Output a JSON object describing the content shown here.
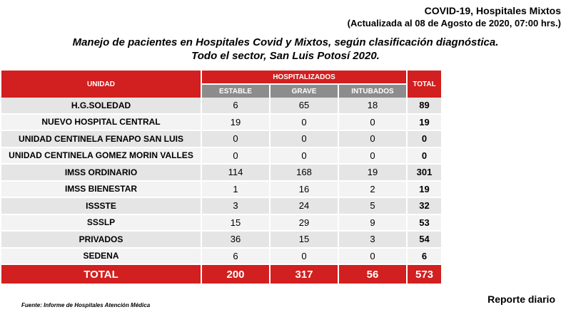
{
  "header": {
    "title": "COVID-19, Hospitales Mixtos",
    "updated": "(Actualizada al 08 de Agosto de 2020, 07:00 hrs.)"
  },
  "subtitle": {
    "line1": "Manejo de pacientes en Hospitales Covid y Mixtos, según clasificación diagnóstica.",
    "line2": "Todo el sector, San Luis Potosí 2020."
  },
  "table": {
    "col_unidad": "UNIDAD",
    "col_group": "HOSPITALIZADOS",
    "col_estable": "ESTABLE",
    "col_grave": "GRAVE",
    "col_intubados": "INTUBADOS",
    "col_total": "TOTAL",
    "rows": [
      {
        "unit": "H.G.SOLEDAD",
        "estable": "6",
        "grave": "65",
        "intubados": "18",
        "total": "89"
      },
      {
        "unit": "NUEVO HOSPITAL CENTRAL",
        "estable": "19",
        "grave": "0",
        "intubados": "0",
        "total": "19"
      },
      {
        "unit": "UNIDAD CENTINELA FENAPO SAN LUIS",
        "estable": "0",
        "grave": "0",
        "intubados": "0",
        "total": "0"
      },
      {
        "unit": "UNIDAD CENTINELA GOMEZ MORIN VALLES",
        "estable": "0",
        "grave": "0",
        "intubados": "0",
        "total": "0"
      },
      {
        "unit": "IMSS ORDINARIO",
        "estable": "114",
        "grave": "168",
        "intubados": "19",
        "total": "301"
      },
      {
        "unit": "IMSS BIENESTAR",
        "estable": "1",
        "grave": "16",
        "intubados": "2",
        "total": "19"
      },
      {
        "unit": "ISSSTE",
        "estable": "3",
        "grave": "24",
        "intubados": "5",
        "total": "32"
      },
      {
        "unit": "SSSLP",
        "estable": "15",
        "grave": "29",
        "intubados": "9",
        "total": "53"
      },
      {
        "unit": "PRIVADOS",
        "estable": "36",
        "grave": "15",
        "intubados": "3",
        "total": "54"
      },
      {
        "unit": "SEDENA",
        "estable": "6",
        "grave": "0",
        "intubados": "0",
        "total": "6"
      }
    ],
    "totals": {
      "label": "TOTAL",
      "estable": "200",
      "grave": "317",
      "intubados": "56",
      "total": "573"
    }
  },
  "footer": {
    "source": "Fuente: Informe de Hospitales Atención Médica",
    "report": "Reporte diario"
  }
}
